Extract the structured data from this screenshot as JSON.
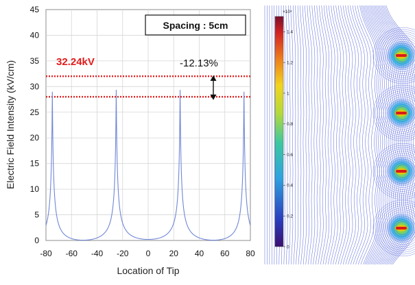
{
  "chart_data": [
    {
      "type": "line",
      "xlabel": "Location of Tip",
      "ylabel": "Electric Field Intensity (kV/cm)",
      "xlim": [
        -80,
        80
      ],
      "ylim": [
        0,
        45
      ],
      "xticks": [
        "-80",
        "-60",
        "-40",
        "-20",
        "0",
        "20",
        "40",
        "60",
        "80"
      ],
      "yticks": [
        "0",
        "5",
        "10",
        "15",
        "20",
        "25",
        "30",
        "35",
        "40",
        "45"
      ],
      "grid": true,
      "series_color": "#6f86d6",
      "peaks": [
        {
          "x": -75,
          "y": 29
        },
        {
          "x": -25,
          "y": 28.5
        },
        {
          "x": 25,
          "y": 28.5
        },
        {
          "x": 75,
          "y": 29
        }
      ],
      "minima": [
        {
          "x": -50,
          "y": 0.5
        },
        {
          "x": 0,
          "y": 0.2
        },
        {
          "x": 50,
          "y": 0.5
        }
      ],
      "edge_values": [
        {
          "x": -80,
          "y": 4.5
        },
        {
          "x": 80,
          "y": 4.5
        }
      ],
      "reference_lines": [
        {
          "y": 32,
          "color": "#e31b1b",
          "style": "dotted"
        },
        {
          "y": 28,
          "color": "#e31b1b",
          "style": "dotted"
        }
      ],
      "annotations": {
        "upper_value": "32.24kV",
        "difference": "-12.13%",
        "spacing": "Spacing : 5cm"
      }
    },
    {
      "type": "heatmap",
      "description_colorbar": "jet",
      "colorbar_multiplier": "×10⁴",
      "colorbar_ticks": [
        "0",
        "0.2",
        "0.4",
        "0.6",
        "0.8",
        "1",
        "1.2",
        "1.4"
      ],
      "colorbar_range": [
        0,
        1.5
      ],
      "electrode_count": 4,
      "colors": {
        "contour": "#4a5ad8",
        "electrode": "#d91a1a",
        "core": "#f0c000"
      }
    }
  ]
}
